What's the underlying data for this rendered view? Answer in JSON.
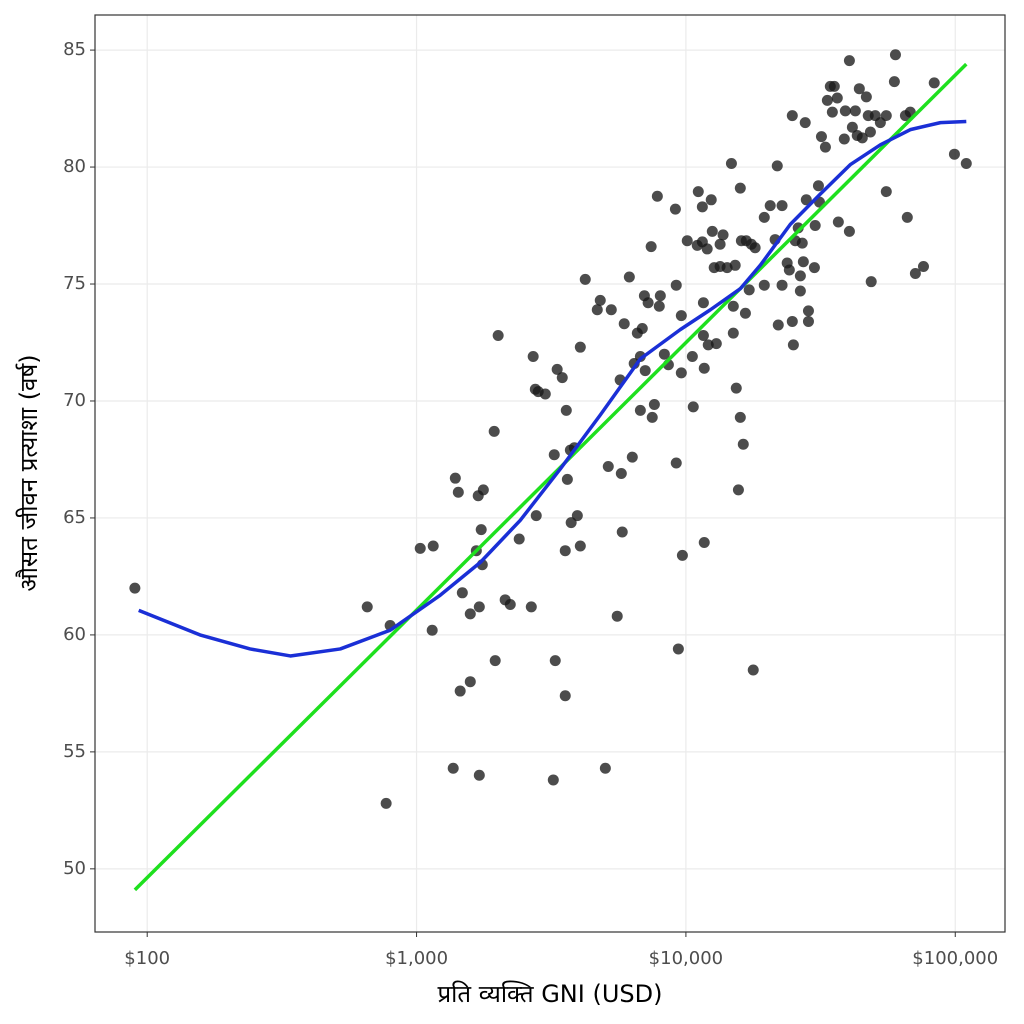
{
  "chart_data": {
    "type": "scatter",
    "xlabel": "प्रति व्यक्ति GNI (USD)",
    "ylabel": "औसत जीवन प्रत्याशा (वर्ष)",
    "xscale": "log",
    "xlim": [
      64,
      153000
    ],
    "ylim": [
      47.3,
      86.5
    ],
    "xticks": [
      {
        "value": 100,
        "label": "$100"
      },
      {
        "value": 1000,
        "label": "$1,000"
      },
      {
        "value": 10000,
        "label": "$10,000"
      },
      {
        "value": 100000,
        "label": "$100,000"
      }
    ],
    "yticks": [
      50,
      55,
      60,
      65,
      70,
      75,
      80,
      85
    ],
    "grid": true,
    "series": [
      {
        "type": "scatter",
        "color": "#1a1a1a",
        "x": [
          90,
          656,
          798,
          771,
          1032,
          1153,
          1143,
          1393,
          1429,
          1368,
          1452,
          1479,
          1583,
          1583,
          1667,
          1694,
          1770,
          1738,
          1710,
          1710,
          1754,
          1942,
          1959,
          2009,
          2133,
          2228,
          2405,
          2667,
          2710,
          2760,
          2830,
          2782,
          3006,
          3219,
          3273,
          3245,
          3327,
          3475,
          3565,
          3565,
          3597,
          3630,
          3750,
          3724,
          3854,
          3953,
          4055,
          4055,
          4230,
          4688,
          4809,
          5023,
          5150,
          5284,
          5559,
          5700,
          5803,
          5757,
          5902,
          6166,
          6324,
          6427,
          6602,
          6774,
          7013,
          6887,
          6774,
          7063,
          7240,
          7430,
          7499,
          7638,
          7834,
          7964,
          8036,
          8318,
          8610,
          9141,
          9208,
          9208,
          9376,
          9616,
          9616,
          9705,
          10116,
          10567,
          10649,
          11019,
          11117,
          11509,
          11509,
          11614,
          11614,
          11698,
          11698,
          11995,
          12106,
          12417,
          12532,
          12736,
          12970,
          13396,
          13396,
          13740,
          14223,
          14757,
          14997,
          14997,
          15241,
          15382,
          15667,
          15922,
          15922,
          16069,
          16331,
          16634,
          16749,
          17178,
          17497,
          17783,
          18073,
          19543,
          19543,
          20558,
          21440,
          21837,
          22025,
          22751,
          22751,
          23768,
          24211,
          24831,
          25063,
          24831,
          25470,
          26121,
          26606,
          26606,
          27040,
          27290,
          27733,
          27990,
          28510,
          28510,
          30000,
          30200,
          31050,
          31330,
          31860,
          32960,
          33510,
          34370,
          34970,
          35560,
          36480,
          36810,
          38730,
          39080,
          40460,
          40460,
          41500,
          42570,
          43260,
          44040,
          45170,
          46770,
          47530,
          48420,
          48750,
          50470,
          52720,
          55460,
          55460,
          59980,
          59430,
          65310,
          66370,
          68080,
          71120,
          76210,
          83560,
          99300,
          109900
        ],
        "values": [
          62.0,
          61.2,
          60.4,
          52.8,
          63.7,
          63.8,
          60.2,
          66.7,
          66.1,
          54.3,
          57.6,
          61.8,
          60.9,
          58.0,
          63.6,
          65.95,
          66.2,
          64.5,
          61.2,
          54.0,
          63.0,
          68.7,
          58.9,
          72.8,
          61.5,
          61.3,
          64.1,
          61.2,
          71.9,
          70.5,
          70.4,
          65.1,
          70.3,
          53.8,
          58.9,
          67.7,
          71.35,
          71.0,
          63.6,
          57.4,
          69.6,
          66.65,
          64.8,
          67.9,
          68.0,
          65.1,
          63.8,
          72.3,
          75.2,
          73.9,
          74.3,
          54.3,
          67.2,
          73.9,
          60.8,
          70.9,
          64.4,
          66.9,
          73.3,
          75.3,
          67.6,
          71.6,
          72.9,
          71.9,
          74.5,
          73.1,
          69.6,
          71.3,
          74.2,
          76.6,
          69.3,
          69.85,
          78.75,
          74.05,
          74.5,
          72.0,
          71.55,
          78.2,
          67.35,
          74.95,
          59.4,
          71.2,
          73.65,
          63.4,
          76.85,
          71.9,
          69.75,
          76.65,
          78.95,
          78.3,
          76.8,
          72.8,
          74.2,
          71.4,
          63.95,
          76.5,
          72.4,
          78.6,
          77.25,
          75.7,
          72.45,
          76.7,
          75.75,
          77.1,
          75.7,
          80.15,
          72.9,
          74.05,
          75.8,
          70.55,
          66.2,
          79.1,
          69.3,
          76.85,
          68.15,
          73.75,
          76.85,
          74.75,
          76.7,
          58.5,
          76.55,
          74.95,
          77.85,
          78.35,
          76.9,
          80.05,
          73.25,
          78.35,
          74.95,
          75.9,
          75.6,
          73.4,
          72.4,
          82.2,
          76.85,
          77.4,
          75.35,
          74.7,
          76.75,
          75.95,
          81.9,
          78.6,
          73.85,
          73.4,
          75.7,
          77.5,
          79.2,
          78.5,
          81.3,
          80.85,
          82.85,
          83.45,
          82.35,
          83.45,
          82.95,
          77.65,
          81.2,
          82.4,
          84.55,
          77.25,
          81.7,
          82.4,
          81.35,
          83.35,
          81.25,
          83.0,
          82.2,
          81.5,
          75.1,
          82.2,
          81.9,
          82.2,
          78.95,
          84.8,
          83.65,
          82.2,
          77.85,
          82.35,
          75.45,
          75.75,
          83.6,
          80.55,
          80.15
        ]
      },
      {
        "type": "line",
        "color": "#1ee01e",
        "x": [
          90,
          109900
        ],
        "values": [
          49.1,
          84.4
        ]
      },
      {
        "type": "line",
        "color": "#1a2fd6",
        "x": [
          93,
          157,
          241,
          340,
          521,
          798,
          1225,
          1725,
          2427,
          3420,
          4809,
          6774,
          9528,
          12330,
          15922,
          18880,
          24410,
          31560,
          40740,
          52720,
          68080,
          88110,
          109900
        ],
        "values": [
          61.05,
          60.0,
          59.4,
          59.1,
          59.4,
          60.2,
          61.7,
          63.1,
          64.9,
          67.1,
          69.4,
          71.8,
          73.05,
          73.9,
          74.8,
          75.8,
          77.55,
          78.85,
          80.1,
          80.95,
          81.6,
          81.9,
          81.95
        ]
      }
    ]
  }
}
